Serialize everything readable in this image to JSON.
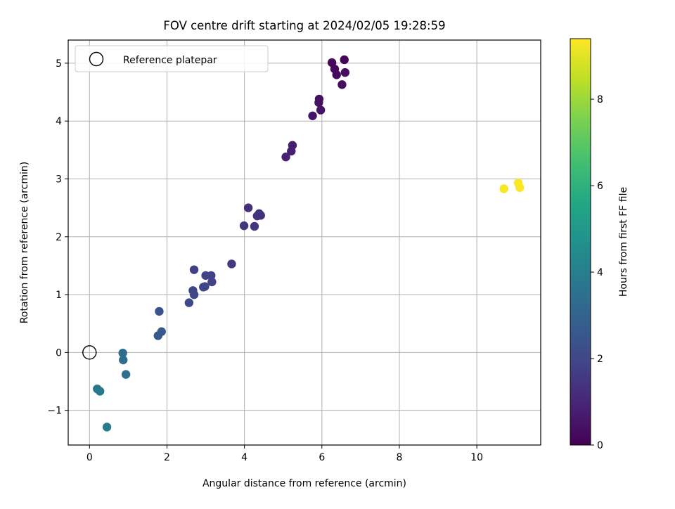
{
  "chart_data": {
    "type": "scatter",
    "title": "FOV centre drift starting at 2024/02/05 19:28:59",
    "xlabel": "Angular distance from reference (arcmin)",
    "ylabel": "Rotation from reference (arcmin)",
    "xlim": [
      -0.55,
      11.65
    ],
    "ylim": [
      -1.6,
      5.4
    ],
    "x_ticks": [
      0,
      2,
      4,
      6,
      8,
      10
    ],
    "y_ticks": [
      -1,
      0,
      1,
      2,
      3,
      4,
      5
    ],
    "x_tick_labels": [
      "0",
      "2",
      "4",
      "6",
      "8",
      "10"
    ],
    "y_tick_labels": [
      "−1",
      "0",
      "1",
      "2",
      "3",
      "4",
      "5"
    ],
    "grid": true,
    "legend": {
      "placement": "upper-left",
      "entries": [
        {
          "label": "Reference platepar",
          "marker": "hollow-circle"
        }
      ]
    },
    "reference_point": {
      "x": 0,
      "y": 0
    },
    "colorbar": {
      "label": "Hours from first FF file",
      "range": [
        0,
        9.4
      ],
      "ticks": [
        0,
        2,
        4,
        6,
        8
      ],
      "tick_labels": [
        "0",
        "2",
        "4",
        "6",
        "8"
      ],
      "colormap": "viridis"
    },
    "points": [
      {
        "x": 6.58,
        "y": 5.06,
        "c": 0.1
      },
      {
        "x": 6.26,
        "y": 5.01,
        "c": 0.15
      },
      {
        "x": 6.33,
        "y": 4.9,
        "c": 0.2
      },
      {
        "x": 6.38,
        "y": 4.8,
        "c": 0.25
      },
      {
        "x": 6.6,
        "y": 4.84,
        "c": 0.3
      },
      {
        "x": 6.52,
        "y": 4.63,
        "c": 0.35
      },
      {
        "x": 5.93,
        "y": 4.38,
        "c": 0.4
      },
      {
        "x": 5.92,
        "y": 4.32,
        "c": 0.45
      },
      {
        "x": 5.97,
        "y": 4.19,
        "c": 0.5
      },
      {
        "x": 5.76,
        "y": 4.09,
        "c": 0.55
      },
      {
        "x": 5.24,
        "y": 3.58,
        "c": 0.75
      },
      {
        "x": 5.21,
        "y": 3.48,
        "c": 0.8
      },
      {
        "x": 5.07,
        "y": 3.38,
        "c": 0.85
      },
      {
        "x": 4.1,
        "y": 2.5,
        "c": 1.25
      },
      {
        "x": 4.38,
        "y": 2.4,
        "c": 1.3
      },
      {
        "x": 4.33,
        "y": 2.36,
        "c": 1.35
      },
      {
        "x": 4.42,
        "y": 2.37,
        "c": 1.35
      },
      {
        "x": 3.99,
        "y": 2.19,
        "c": 1.4
      },
      {
        "x": 4.26,
        "y": 2.18,
        "c": 1.45
      },
      {
        "x": 3.67,
        "y": 1.53,
        "c": 1.6
      },
      {
        "x": 2.7,
        "y": 1.43,
        "c": 1.8
      },
      {
        "x": 3.0,
        "y": 1.33,
        "c": 1.85
      },
      {
        "x": 3.14,
        "y": 1.33,
        "c": 1.85
      },
      {
        "x": 3.16,
        "y": 1.22,
        "c": 1.9
      },
      {
        "x": 2.94,
        "y": 1.13,
        "c": 1.95
      },
      {
        "x": 2.98,
        "y": 1.14,
        "c": 1.95
      },
      {
        "x": 2.67,
        "y": 1.07,
        "c": 2.0
      },
      {
        "x": 2.7,
        "y": 1.0,
        "c": 2.05
      },
      {
        "x": 2.57,
        "y": 0.86,
        "c": 2.1
      },
      {
        "x": 1.8,
        "y": 0.71,
        "c": 2.4
      },
      {
        "x": 1.86,
        "y": 0.36,
        "c": 2.6
      },
      {
        "x": 1.77,
        "y": 0.29,
        "c": 2.65
      },
      {
        "x": 0.86,
        "y": -0.01,
        "c": 3.3
      },
      {
        "x": 0.87,
        "y": -0.13,
        "c": 3.35
      },
      {
        "x": 0.94,
        "y": -0.38,
        "c": 3.4
      },
      {
        "x": 0.2,
        "y": -0.63,
        "c": 3.7
      },
      {
        "x": 0.27,
        "y": -0.67,
        "c": 3.75
      },
      {
        "x": 0.45,
        "y": -1.29,
        "c": 3.9
      },
      {
        "x": 10.7,
        "y": 2.83,
        "c": 9.3
      },
      {
        "x": 11.07,
        "y": 2.93,
        "c": 9.35
      },
      {
        "x": 11.11,
        "y": 2.85,
        "c": 9.4
      }
    ]
  }
}
